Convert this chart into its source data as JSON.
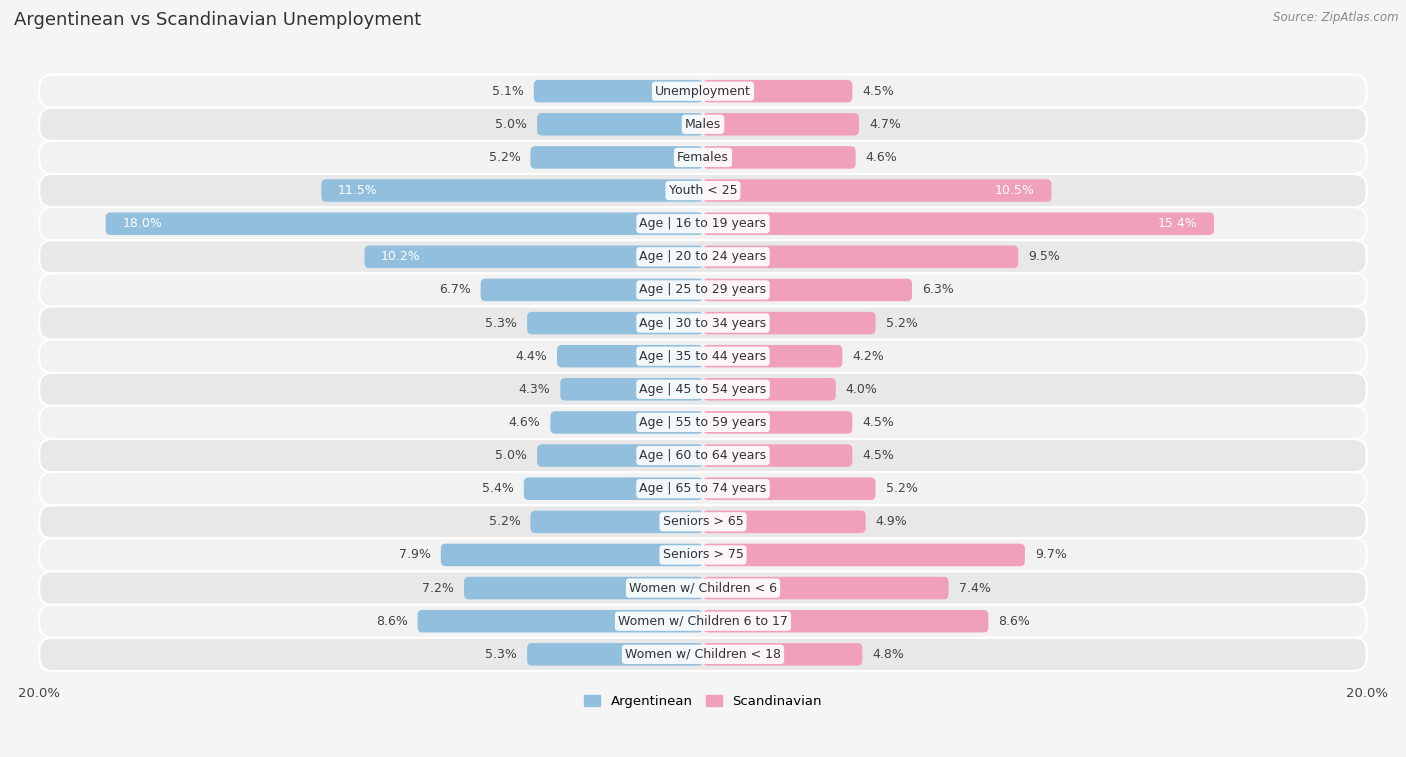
{
  "title": "Argentinean vs Scandinavian Unemployment",
  "source": "Source: ZipAtlas.com",
  "categories": [
    "Unemployment",
    "Males",
    "Females",
    "Youth < 25",
    "Age | 16 to 19 years",
    "Age | 20 to 24 years",
    "Age | 25 to 29 years",
    "Age | 30 to 34 years",
    "Age | 35 to 44 years",
    "Age | 45 to 54 years",
    "Age | 55 to 59 years",
    "Age | 60 to 64 years",
    "Age | 65 to 74 years",
    "Seniors > 65",
    "Seniors > 75",
    "Women w/ Children < 6",
    "Women w/ Children 6 to 17",
    "Women w/ Children < 18"
  ],
  "argentinean": [
    5.1,
    5.0,
    5.2,
    11.5,
    18.0,
    10.2,
    6.7,
    5.3,
    4.4,
    4.3,
    4.6,
    5.0,
    5.4,
    5.2,
    7.9,
    7.2,
    8.6,
    5.3
  ],
  "scandinavian": [
    4.5,
    4.7,
    4.6,
    10.5,
    15.4,
    9.5,
    6.3,
    5.2,
    4.2,
    4.0,
    4.5,
    4.5,
    5.2,
    4.9,
    9.7,
    7.4,
    8.6,
    4.8
  ],
  "arg_color": "#92bfdd",
  "scan_color": "#f0a0b8",
  "arg_label_inside_color": "#ffffff",
  "scan_label_inside_color": "#ffffff",
  "row_bg_odd": "#f2f2f2",
  "row_bg_even": "#e8e8e8",
  "background_color": "#f5f5f5",
  "axis_max": 20.0,
  "label_fontsize": 9.0,
  "tick_fontsize": 9.5,
  "title_fontsize": 13,
  "source_fontsize": 8.5
}
